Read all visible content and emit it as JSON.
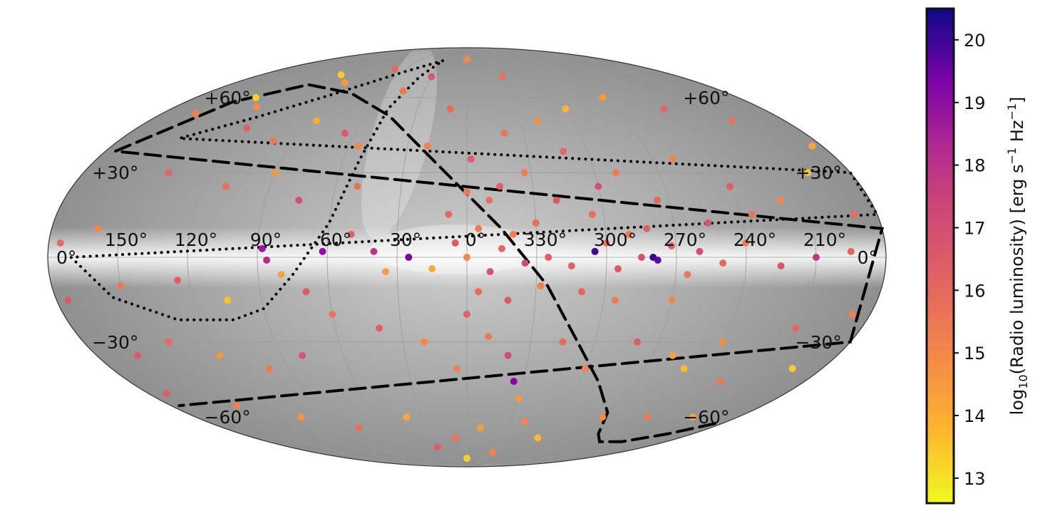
{
  "chart_data": {
    "type": "scatter",
    "projection": "mollweide",
    "coordinate_system": "galactic",
    "background": "grayscale all-sky map",
    "colormap": "plasma",
    "longitude_ticks": [
      "150°",
      "120°",
      "90°",
      "60°",
      "30°",
      "0°",
      "330°",
      "300°",
      "270°",
      "240°",
      "210°"
    ],
    "latitude_ticks_left": [
      "+60°",
      "+30°",
      "0°",
      "−30°",
      "−60°"
    ],
    "latitude_ticks_right": [
      "+60°",
      "+30°",
      "0°",
      "−30°",
      "−60°"
    ],
    "colorbar": {
      "label": "log10(Radio luminosity) [erg s−1 Hz−1]",
      "label_parts": {
        "pre": "log",
        "sub": "10",
        "mid": "(Radio luminosity) [erg s",
        "sup1": "−1",
        "mid2": " Hz",
        "sup2": "−1",
        "post": "]"
      },
      "range": [
        12.6,
        20.5
      ],
      "ticks": [
        "13",
        "14",
        "15",
        "16",
        "17",
        "18",
        "19",
        "20"
      ]
    },
    "curves": [
      {
        "style": "dotted",
        "lb": [
          [
            30,
            79
          ],
          [
            60,
            72
          ],
          [
            90,
            62
          ],
          [
            120,
            52
          ],
          [
            150,
            43
          ],
          [
            180,
            30
          ],
          [
            180,
            15
          ],
          [
            170,
            0
          ],
          [
            155,
            -14
          ],
          [
            130,
            -22
          ],
          [
            105,
            -22
          ],
          [
            90,
            -18
          ],
          [
            75,
            -6
          ],
          [
            60,
            12
          ],
          [
            52,
            35
          ],
          [
            48,
            55
          ],
          [
            40,
            70
          ],
          [
            30,
            79
          ]
        ]
      },
      {
        "style": "dashed",
        "lb": [
          [
            -175,
            -63
          ],
          [
            -160,
            -68
          ],
          [
            -140,
            -72
          ],
          [
            -120,
            -72
          ],
          [
            -105,
            -68
          ],
          [
            -90,
            -58
          ],
          [
            -70,
            -45
          ],
          [
            -50,
            -28
          ],
          [
            -35,
            -10
          ],
          [
            -15,
            10
          ],
          [
            10,
            30
          ],
          [
            45,
            52
          ],
          [
            80,
            62
          ],
          [
            120,
            66
          ],
          [
            150,
            58
          ],
          [
            175,
            38
          ],
          [
            180,
            10
          ],
          [
            180,
            -30
          ],
          [
            175,
            -55
          ]
        ]
      }
    ],
    "points": [
      {
        "l": 110,
        "b": 71,
        "v": 13.4
      },
      {
        "l": 95,
        "b": 67,
        "v": 14.6
      },
      {
        "l": 70,
        "b": 74,
        "v": 16.0
      },
      {
        "l": 45,
        "b": 63,
        "v": 15.5
      },
      {
        "l": 130,
        "b": 56,
        "v": 14.8
      },
      {
        "l": 140,
        "b": 60,
        "v": 13.3
      },
      {
        "l": 160,
        "b": 53,
        "v": 15.2
      },
      {
        "l": 120,
        "b": 47,
        "v": 16.3
      },
      {
        "l": 100,
        "b": 42,
        "v": 15.4
      },
      {
        "l": 85,
        "b": 50,
        "v": 14.0
      },
      {
        "l": 65,
        "b": 45,
        "v": 16.6
      },
      {
        "l": 55,
        "b": 40,
        "v": 15.0
      },
      {
        "l": 140,
        "b": 30,
        "v": 16.1
      },
      {
        "l": 110,
        "b": 25,
        "v": 15.8
      },
      {
        "l": 90,
        "b": 30,
        "v": 14.5
      },
      {
        "l": 75,
        "b": 20,
        "v": 16.9
      },
      {
        "l": 50,
        "b": 25,
        "v": 15.7
      },
      {
        "l": 160,
        "b": 10,
        "v": 15.0
      },
      {
        "l": 175,
        "b": 5,
        "v": 16.0
      },
      {
        "l": 150,
        "b": -10,
        "v": 15.5
      },
      {
        "l": 125,
        "b": -8,
        "v": 16.3
      },
      {
        "l": 105,
        "b": -15,
        "v": 13.5
      },
      {
        "l": 88,
        "b": 3,
        "v": 18.8
      },
      {
        "l": 86,
        "b": -1,
        "v": 18.2
      },
      {
        "l": 80,
        "b": -6,
        "v": 14.3
      },
      {
        "l": 70,
        "b": -12,
        "v": 16.5
      },
      {
        "l": 62,
        "b": 2,
        "v": 19.0
      },
      {
        "l": 40,
        "b": 2,
        "v": 17.9
      },
      {
        "l": 25,
        "b": 0,
        "v": 19.4
      },
      {
        "l": 15,
        "b": -4,
        "v": 14.0
      },
      {
        "l": 5,
        "b": 5,
        "v": 16.5
      },
      {
        "l": 0,
        "b": 0,
        "v": 15.0
      },
      {
        "l": -5,
        "b": 10,
        "v": 15.3
      },
      {
        "l": -10,
        "b": -5,
        "v": 16.8
      },
      {
        "l": -15,
        "b": 3,
        "v": 16.0
      },
      {
        "l": -20,
        "b": 8,
        "v": 15.2
      },
      {
        "l": -25,
        "b": -2,
        "v": 17.2
      },
      {
        "l": -30,
        "b": 12,
        "v": 15.8
      },
      {
        "l": -35,
        "b": 0,
        "v": 16.4
      },
      {
        "l": -45,
        "b": -3,
        "v": 16.2
      },
      {
        "l": -55,
        "b": 2,
        "v": 20.0
      },
      {
        "l": -60,
        "b": 5,
        "v": 15.8
      },
      {
        "l": -65,
        "b": -4,
        "v": 16.5
      },
      {
        "l": -70,
        "b": 8,
        "v": 15.3
      },
      {
        "l": -75,
        "b": 0,
        "v": 16.9
      },
      {
        "l": -80,
        "b": 0,
        "v": 20.1
      },
      {
        "l": -82,
        "b": -1,
        "v": 19.6
      },
      {
        "l": -88,
        "b": 4,
        "v": 16.3
      },
      {
        "l": -95,
        "b": -6,
        "v": 15.5
      },
      {
        "l": -100,
        "b": 2,
        "v": 17.0
      },
      {
        "l": -110,
        "b": -2,
        "v": 16.0
      },
      {
        "l": -120,
        "b": 5,
        "v": 15.2
      },
      {
        "l": -135,
        "b": -3,
        "v": 16.7
      },
      {
        "l": -150,
        "b": 0,
        "v": 17.8
      },
      {
        "l": -165,
        "b": 2,
        "v": 16.1
      },
      {
        "l": -10,
        "b": 20,
        "v": 15.7
      },
      {
        "l": -15,
        "b": 25,
        "v": 16.3
      },
      {
        "l": 0,
        "b": 23,
        "v": 15.5
      },
      {
        "l": -40,
        "b": 20,
        "v": 16.6
      },
      {
        "l": -55,
        "b": 15,
        "v": 15.8
      },
      {
        "l": -60,
        "b": 25,
        "v": 16.9
      },
      {
        "l": -70,
        "b": 30,
        "v": 15.4
      },
      {
        "l": -85,
        "b": 20,
        "v": 16.0
      },
      {
        "l": -100,
        "b": 35,
        "v": 15.1
      },
      {
        "l": -120,
        "b": 25,
        "v": 16.4
      },
      {
        "l": -140,
        "b": 20,
        "v": 15.0
      },
      {
        "l": -160,
        "b": 30,
        "v": 13.5
      },
      {
        "l": -170,
        "b": 15,
        "v": 15.8
      },
      {
        "l": -20,
        "b": 45,
        "v": 15.6
      },
      {
        "l": -40,
        "b": 50,
        "v": 14.8
      },
      {
        "l": -60,
        "b": 55,
        "v": 13.8
      },
      {
        "l": -90,
        "b": 60,
        "v": 14.5
      },
      {
        "l": -120,
        "b": 55,
        "v": 16.1
      },
      {
        "l": -150,
        "b": 50,
        "v": 15.7
      },
      {
        "l": -175,
        "b": 40,
        "v": 14.2
      },
      {
        "l": 0,
        "b": -20,
        "v": 16.2
      },
      {
        "l": -10,
        "b": -28,
        "v": 15.4
      },
      {
        "l": -20,
        "b": -35,
        "v": 17.0
      },
      {
        "l": 5,
        "b": -40,
        "v": 15.2
      },
      {
        "l": -25,
        "b": -45,
        "v": 19.2
      },
      {
        "l": -30,
        "b": -52,
        "v": 14.5
      },
      {
        "l": -45,
        "b": -30,
        "v": 15.9
      },
      {
        "l": -60,
        "b": -40,
        "v": 15.1
      },
      {
        "l": -80,
        "b": -30,
        "v": 16.4
      },
      {
        "l": -100,
        "b": -35,
        "v": 14.3
      },
      {
        "l": -110,
        "b": -40,
        "v": 13.6
      },
      {
        "l": -120,
        "b": -30,
        "v": 14.8
      },
      {
        "l": -135,
        "b": -45,
        "v": 15.5
      },
      {
        "l": -150,
        "b": -25,
        "v": 16.0
      },
      {
        "l": -165,
        "b": -40,
        "v": 13.4
      },
      {
        "l": -172,
        "b": -20,
        "v": 15.3
      },
      {
        "l": 20,
        "b": -30,
        "v": 15.0
      },
      {
        "l": 40,
        "b": -25,
        "v": 16.3
      },
      {
        "l": 60,
        "b": -20,
        "v": 15.6
      },
      {
        "l": 80,
        "b": -35,
        "v": 16.8
      },
      {
        "l": 100,
        "b": -40,
        "v": 15.4
      },
      {
        "l": 120,
        "b": -35,
        "v": 14.6
      },
      {
        "l": 140,
        "b": -30,
        "v": 15.9
      },
      {
        "l": 160,
        "b": -35,
        "v": 16.5
      },
      {
        "l": 175,
        "b": -15,
        "v": 16.7
      },
      {
        "l": 140,
        "b": -55,
        "v": 15.3
      },
      {
        "l": 110,
        "b": -60,
        "v": 14.7
      },
      {
        "l": 80,
        "b": -65,
        "v": 15.8
      },
      {
        "l": 40,
        "b": -60,
        "v": 14.1
      },
      {
        "l": 10,
        "b": -70,
        "v": 15.6
      },
      {
        "l": -10,
        "b": -65,
        "v": 14.4
      },
      {
        "l": -40,
        "b": -62,
        "v": 15.0
      },
      {
        "l": -60,
        "b": -70,
        "v": 13.7
      },
      {
        "l": -90,
        "b": -60,
        "v": 14.9
      },
      {
        "l": -120,
        "b": -60,
        "v": 15.4
      },
      {
        "l": -150,
        "b": -60,
        "v": 14.2
      },
      {
        "l": 170,
        "b": -50,
        "v": 16.4
      },
      {
        "l": 0,
        "b": -82,
        "v": 13.3
      },
      {
        "l": -30,
        "b": -78,
        "v": 15.1
      },
      {
        "l": 30,
        "b": -75,
        "v": 16.3
      },
      {
        "l": 20,
        "b": 40,
        "v": 15.2
      },
      {
        "l": 10,
        "b": 55,
        "v": 15.9
      },
      {
        "l": 30,
        "b": 70,
        "v": 16.6
      },
      {
        "l": 0,
        "b": 80,
        "v": 15.0
      },
      {
        "l": -30,
        "b": 70,
        "v": 15.7
      },
      {
        "l": 8,
        "b": 15,
        "v": 16.0
      },
      {
        "l": -5,
        "b": -12,
        "v": 15.9
      },
      {
        "l": -18,
        "b": -15,
        "v": 16.6
      },
      {
        "l": -32,
        "b": -10,
        "v": 15.2
      },
      {
        "l": -50,
        "b": -12,
        "v": 16.1
      },
      {
        "l": -65,
        "b": -15,
        "v": 15.4
      },
      {
        "l": -78,
        "b": 10,
        "v": 16.4
      },
      {
        "l": -90,
        "b": -15,
        "v": 15.0
      },
      {
        "l": -105,
        "b": 12,
        "v": 16.7
      },
      {
        "l": -125,
        "b": 15,
        "v": 15.6
      },
      {
        "l": 35,
        "b": -5,
        "v": 14.4
      },
      {
        "l": 50,
        "b": 8,
        "v": 16.2
      },
      {
        "l": -2,
        "b": 35,
        "v": 16.4
      },
      {
        "l": -27,
        "b": 30,
        "v": 15.3
      },
      {
        "l": -48,
        "b": 38,
        "v": 16.0
      }
    ]
  }
}
